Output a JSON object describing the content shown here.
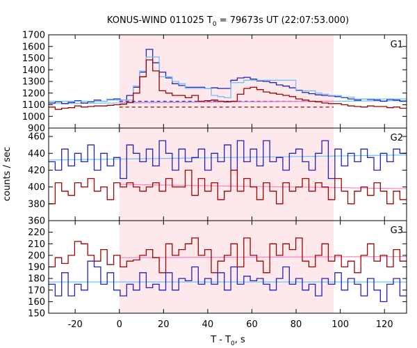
{
  "chart_data": {
    "type": "line",
    "title": "KONUS-WIND 011025 T",
    "title_sub": "0",
    "title_tail": " = 79673s UT (22:07:53.000)",
    "xlabel": "T - T",
    "xlabel_sub": "0",
    "xlabel_tail": ", s",
    "ylabel": "counts / sec",
    "xlim": [
      -32,
      130
    ],
    "x_ticks": [
      -20,
      0,
      20,
      40,
      60,
      80,
      100,
      120
    ],
    "shaded_interval": [
      0,
      97
    ],
    "colors": {
      "red": "#a00000",
      "blue": "#2020c0",
      "lightblue": "#70c0ff",
      "pink": "#ff80c0",
      "shade": "#fde8ec"
    },
    "panels": [
      {
        "label": "G1",
        "ylim": [
          900,
          1700
        ],
        "y_ticks": [
          900,
          1000,
          1100,
          1200,
          1300,
          1400,
          1500,
          1600,
          1700
        ],
        "bin_start": -32,
        "bin_width": 2.944,
        "series": [
          {
            "color_key": "blue",
            "values": [
              1115,
              1125,
              1110,
              1120,
              1135,
              1115,
              1125,
              1140,
              1130,
              1145,
              1150,
              1140,
              1180,
              1250,
              1380,
              1575,
              1460,
              1380,
              1330,
              1280,
              1265,
              1250,
              1250,
              1250,
              1240,
              1245,
              1240,
              1240,
              1310,
              1330,
              1335,
              1320,
              1305,
              1300,
              1290,
              1270,
              1260,
              1245,
              1225,
              1205,
              1195,
              1185,
              1180,
              1175,
              1170,
              1160,
              1150,
              1140,
              1150,
              1145,
              1140,
              1130,
              1145,
              1140,
              1130
            ]
          },
          {
            "color_key": "lightblue",
            "values": [
              1130,
              1130,
              1130,
              1130,
              1130,
              1130,
              1130,
              1130,
              1130,
              1140,
              1140,
              1140,
              1140,
              1260,
              1390,
              1510,
              1510,
              1340,
              1340,
              1300,
              1280,
              1240,
              1240,
              1240,
              1240,
              1180,
              1170,
              1160,
              1290,
              1290,
              1310,
              1310,
              1310,
              1310,
              1310,
              1310,
              1310,
              1310,
              1220,
              1220,
              1220,
              1200,
              1190,
              1180,
              1180,
              1165,
              1165,
              1150,
              1150,
              1150,
              1150,
              1150,
              1150,
              1150,
              1150
            ]
          },
          {
            "color_key": "red",
            "values": [
              1080,
              1060,
              1070,
              1075,
              1090,
              1080,
              1085,
              1090,
              1090,
              1095,
              1100,
              1105,
              1120,
              1200,
              1340,
              1485,
              1390,
              1220,
              1200,
              1180,
              1180,
              1160,
              1180,
              1130,
              1135,
              1140,
              1130,
              1125,
              1130,
              1190,
              1240,
              1250,
              1230,
              1210,
              1200,
              1190,
              1180,
              1170,
              1150,
              1140,
              1130,
              1125,
              1115,
              1110,
              1110,
              1100,
              1090,
              1085,
              1080,
              1090,
              1085,
              1085,
              1075,
              1080,
              1070
            ]
          }
        ],
        "levels": [
          {
            "color_key": "blue",
            "dashed": true,
            "points": [
              [
                0,
                1130
              ],
              [
                97,
                1130
              ]
            ]
          },
          {
            "color_key": "red",
            "dashed": true,
            "points": [
              [
                0,
                1080
              ],
              [
                97,
                1080
              ]
            ]
          },
          {
            "color_key": "lightblue",
            "dashed": false,
            "points": [
              [
                -32,
                1110
              ],
              [
                130,
                1135
              ]
            ]
          },
          {
            "color_key": "pink",
            "dashed": false,
            "points": [
              [
                0,
                1120
              ],
              [
                97,
                1130
              ]
            ]
          }
        ]
      },
      {
        "label": "G2",
        "ylim": [
          360,
          470
        ],
        "y_ticks": [
          360,
          380,
          400,
          420,
          440,
          460
        ],
        "bin_start": -32,
        "bin_width": 2.944,
        "series": [
          {
            "color_key": "blue",
            "values": [
              430,
              420,
              445,
              425,
              440,
              430,
              450,
              420,
              440,
              425,
              435,
              410,
              450,
              440,
              430,
              445,
              425,
              455,
              440,
              420,
              445,
              430,
              435,
              445,
              420,
              440,
              430,
              450,
              420,
              455,
              430,
              445,
              425,
              455,
              430,
              435,
              420,
              440,
              445,
              430,
              420,
              440,
              455,
              410,
              445,
              425,
              440,
              430,
              445,
              435,
              420,
              440,
              430,
              445,
              440
            ]
          },
          {
            "color_key": "red",
            "values": [
              380,
              405,
              395,
              390,
              405,
              400,
              410,
              395,
              400,
              385,
              405,
              400,
              405,
              400,
              395,
              400,
              405,
              395,
              410,
              400,
              400,
              420,
              390,
              410,
              395,
              405,
              385,
              395,
              420,
              395,
              410,
              400,
              385,
              405,
              395,
              380,
              405,
              395,
              400,
              410,
              395,
              405,
              400,
              385,
              410,
              395,
              380,
              395,
              400,
              390,
              405,
              395,
              380,
              395,
              385
            ]
          }
        ],
        "levels": [
          {
            "color_key": "lightblue",
            "dashed": false,
            "points": [
              [
                -32,
                432
              ],
              [
                130,
                438
              ]
            ]
          },
          {
            "color_key": "pink",
            "dashed": false,
            "points": [
              [
                0,
                403
              ],
              [
                130,
                398
              ]
            ]
          }
        ]
      },
      {
        "label": "G3",
        "ylim": [
          150,
          230
        ],
        "y_ticks": [
          150,
          160,
          170,
          180,
          190,
          200,
          210,
          220
        ],
        "bin_start": -32,
        "bin_width": 2.944,
        "series": [
          {
            "color_key": "red",
            "values": [
              190,
              198,
              193,
              200,
              212,
              210,
              200,
              195,
              205,
              192,
              200,
              190,
              195,
              196,
              200,
              205,
              198,
              185,
              210,
              200,
              205,
              210,
              215,
              200,
              205,
              185,
              195,
              200,
              210,
              190,
              215,
              200,
              195,
              185,
              210,
              200,
              210,
              205,
              215,
              195,
              190,
              200,
              210,
              195,
              200,
              190,
              195,
              185,
              200,
              210,
              195,
              200,
              190,
              205,
              195
            ]
          },
          {
            "color_key": "blue",
            "values": [
              175,
              165,
              185,
              165,
              175,
              170,
              195,
              190,
              175,
              185,
              170,
              165,
              175,
              170,
              185,
              172,
              175,
              170,
              185,
              170,
              180,
              178,
              190,
              175,
              180,
              175,
              185,
              170,
              190,
              175,
              182,
              178,
              180,
              175,
              170,
              180,
              190,
              175,
              180,
              170,
              175,
              165,
              180,
              175,
              185,
              170,
              180,
              175,
              165,
              180,
              170,
              160,
              175,
              180,
              165
            ]
          }
        ],
        "levels": [
          {
            "color_key": "pink",
            "dashed": false,
            "points": [
              [
                0,
                198
              ],
              [
                130,
                199
              ]
            ]
          },
          {
            "color_key": "lightblue",
            "dashed": false,
            "points": [
              [
                -32,
                177
              ],
              [
                130,
                177
              ]
            ]
          }
        ]
      }
    ]
  }
}
